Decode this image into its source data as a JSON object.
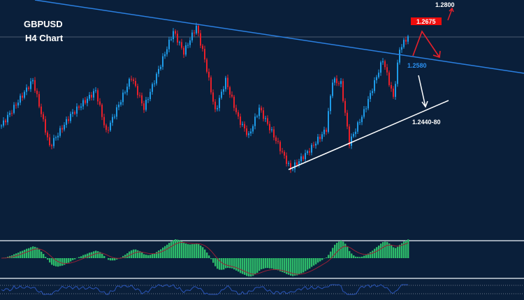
{
  "chart_data": {
    "type": "candlestick",
    "symbol": "GBPUSD",
    "timeframe": "H4 Chart",
    "colors": {
      "background": "#0a1f3a",
      "up": "#1e9be8",
      "down": "#e8202a",
      "trendline": "#2a7fe0",
      "support": "#ffffff",
      "macd_hist": "#2dba6a",
      "macd_signal": "#9a2036",
      "rsi": "#2a55b8"
    },
    "price_path": [
      {
        "bar": 0,
        "price": 1.2294
      },
      {
        "bar": 15,
        "price": 1.2489
      },
      {
        "bar": 23,
        "price": 1.2204
      },
      {
        "bar": 33,
        "price": 1.2339
      },
      {
        "bar": 45,
        "price": 1.2444
      },
      {
        "bar": 50,
        "price": 1.2264
      },
      {
        "bar": 62,
        "price": 1.2504
      },
      {
        "bar": 68,
        "price": 1.2369
      },
      {
        "bar": 82,
        "price": 1.2699
      },
      {
        "bar": 87,
        "price": 1.2609
      },
      {
        "bar": 93,
        "price": 1.272
      },
      {
        "bar": 97,
        "price": 1.2579
      },
      {
        "bar": 102,
        "price": 1.2354
      },
      {
        "bar": 107,
        "price": 1.2489
      },
      {
        "bar": 113,
        "price": 1.2324
      },
      {
        "bar": 118,
        "price": 1.2249
      },
      {
        "bar": 123,
        "price": 1.2369
      },
      {
        "bar": 130,
        "price": 1.2249
      },
      {
        "bar": 138,
        "price": 1.2105
      },
      {
        "bar": 147,
        "price": 1.2189
      },
      {
        "bar": 155,
        "price": 1.2279
      },
      {
        "bar": 158,
        "price": 1.2489
      },
      {
        "bar": 162,
        "price": 1.2474
      },
      {
        "bar": 166,
        "price": 1.2219
      },
      {
        "bar": 173,
        "price": 1.2354
      },
      {
        "bar": 182,
        "price": 1.2579
      },
      {
        "bar": 187,
        "price": 1.2414
      },
      {
        "bar": 190,
        "price": 1.2624
      },
      {
        "bar": 194,
        "price": 1.2678
      }
    ],
    "levels": {
      "target_high": "1.2800",
      "resistance": "1.2675",
      "trendline_break": "1.2580",
      "support": "1.2440-80"
    }
  }
}
